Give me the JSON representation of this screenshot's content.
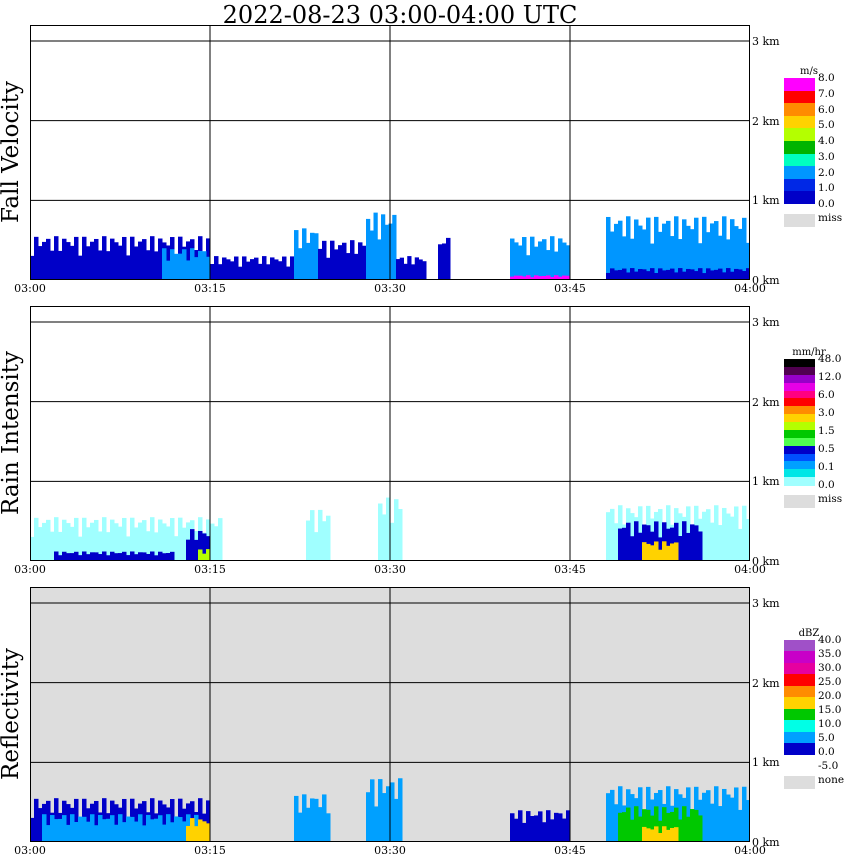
{
  "title": "2022-08-23   03:00-04:00 UTC",
  "x_ticks": [
    "03:00",
    "03:15",
    "03:30",
    "03:45",
    "04:00"
  ],
  "height_ticks": [
    "3 km",
    "2 km",
    "1 km",
    "0 km"
  ],
  "chart_data": [
    {
      "type": "heatmap",
      "ylabel": "Fall Velocity",
      "unit": "m/s",
      "x_range": [
        "03:00",
        "04:00"
      ],
      "y_range_km": [
        0,
        3.2
      ],
      "legend_levels": [
        "8.0",
        "7.0",
        "6.0",
        "5.0",
        "4.0",
        "3.0",
        "2.0",
        "1.0",
        "0.0"
      ],
      "legend_colors": [
        "#ff00ff",
        "#ff0000",
        "#ff8c00",
        "#ffd200",
        "#b4ff00",
        "#00b400",
        "#00ffc0",
        "#0096ff",
        "#0028e6",
        "#0000c8"
      ],
      "missing_label": "miss",
      "missing_color": "#dddddd",
      "background": "#ffffff",
      "cells": [
        {
          "t0": 0,
          "t1": 15,
          "h": 0.55,
          "c": "#0000c8"
        },
        {
          "t0": 11,
          "t1": 15,
          "h": 0.4,
          "c": "#0096ff"
        },
        {
          "t0": 15,
          "t1": 23,
          "h": 0.3,
          "c": "#0000c8"
        },
        {
          "t0": 22,
          "t1": 24,
          "h": 0.65,
          "c": "#0096ff"
        },
        {
          "t0": 24,
          "t1": 30,
          "h": 0.5,
          "c": "#0000c8"
        },
        {
          "t0": 28,
          "t1": 30.5,
          "h": 0.85,
          "c": "#0096ff"
        },
        {
          "t0": 30.5,
          "t1": 33,
          "h": 0.3,
          "c": "#0000c8"
        },
        {
          "t0": 34,
          "t1": 35,
          "h": 0.55,
          "c": "#0000c8"
        },
        {
          "t0": 40,
          "t1": 45,
          "h": 0.55,
          "c": "#0096ff"
        },
        {
          "t0": 40,
          "t1": 45,
          "h": 0.06,
          "c": "#ff00ff"
        },
        {
          "t0": 48,
          "t1": 60,
          "h": 0.8,
          "c": "#0096ff"
        },
        {
          "t0": 48,
          "t1": 60,
          "h": 0.15,
          "c": "#0000c8"
        }
      ]
    },
    {
      "type": "heatmap",
      "ylabel": "Rain Intensity",
      "unit": "mm/hr",
      "x_range": [
        "03:00",
        "04:00"
      ],
      "y_range_km": [
        0,
        3.2
      ],
      "legend_levels": [
        "48.0",
        "12.0",
        "6.0",
        "3.0",
        "1.5",
        "0.5",
        "0.1",
        "0.0"
      ],
      "legend_colors": [
        "#000000",
        "#500050",
        "#9600c8",
        "#e600e6",
        "#ff0080",
        "#ff0000",
        "#ff8c00",
        "#ffd200",
        "#b4ff00",
        "#00c800",
        "#50ff50",
        "#0000c8",
        "#0050ff",
        "#00a0ff",
        "#00e6e6",
        "#a0ffff"
      ],
      "missing_label": "miss",
      "missing_color": "#dddddd",
      "background": "#ffffff",
      "cells": [
        {
          "t0": 0,
          "t1": 16,
          "h": 0.55,
          "c": "#a0ffff"
        },
        {
          "t0": 2,
          "t1": 12,
          "h": 0.12,
          "c": "#0000c8"
        },
        {
          "t0": 13,
          "t1": 15,
          "h": 0.4,
          "c": "#0000c8"
        },
        {
          "t0": 14,
          "t1": 15,
          "h": 0.15,
          "c": "#b4ff00"
        },
        {
          "t0": 23,
          "t1": 25,
          "h": 0.65,
          "c": "#a0ffff"
        },
        {
          "t0": 29,
          "t1": 31,
          "h": 0.8,
          "c": "#a0ffff"
        },
        {
          "t0": 48,
          "t1": 60,
          "h": 0.7,
          "c": "#a0ffff"
        },
        {
          "t0": 49,
          "t1": 56,
          "h": 0.5,
          "c": "#0000c8"
        },
        {
          "t0": 51,
          "t1": 54,
          "h": 0.25,
          "c": "#ffd200"
        }
      ]
    },
    {
      "type": "heatmap",
      "ylabel": "Reflectivity",
      "unit": "dBZ",
      "x_range": [
        "03:00",
        "04:00"
      ],
      "y_range_km": [
        0,
        3.2
      ],
      "legend_levels": [
        "40.0",
        "35.0",
        "30.0",
        "25.0",
        "20.0",
        "15.0",
        "10.0",
        "5.0",
        "0.0",
        "-5.0"
      ],
      "legend_colors": [
        "#a050c8",
        "#c800c8",
        "#e600a0",
        "#ff0000",
        "#ff8c00",
        "#ffd200",
        "#00c800",
        "#00ffe6",
        "#00a0ff",
        "#0000c8",
        "#ffffff"
      ],
      "missing_label": "none",
      "missing_color": "#dddddd",
      "background": "#dddddd",
      "cells": [
        {
          "t0": 0,
          "t1": 15,
          "h": 0.55,
          "c": "#0000c8"
        },
        {
          "t0": 1,
          "t1": 14,
          "h": 0.35,
          "c": "#00a0ff"
        },
        {
          "t0": 13,
          "t1": 15,
          "h": 0.3,
          "c": "#ffd200"
        },
        {
          "t0": 22,
          "t1": 25,
          "h": 0.6,
          "c": "#00a0ff"
        },
        {
          "t0": 28,
          "t1": 31,
          "h": 0.8,
          "c": "#00a0ff"
        },
        {
          "t0": 40,
          "t1": 45,
          "h": 0.4,
          "c": "#0000c8"
        },
        {
          "t0": 48,
          "t1": 60,
          "h": 0.7,
          "c": "#00a0ff"
        },
        {
          "t0": 49,
          "t1": 56,
          "h": 0.45,
          "c": "#00c800"
        },
        {
          "t0": 51,
          "t1": 54,
          "h": 0.2,
          "c": "#ffd200"
        }
      ]
    }
  ]
}
